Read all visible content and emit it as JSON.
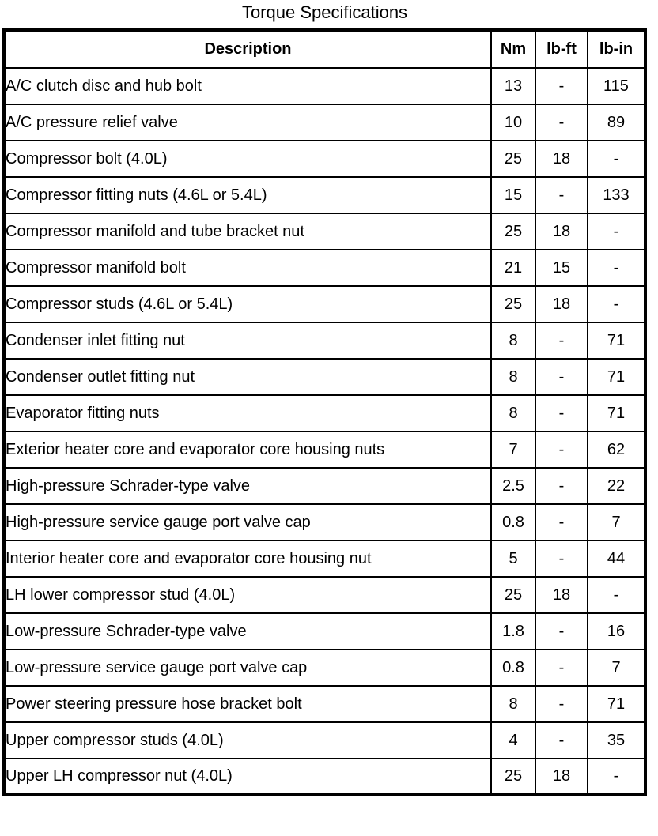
{
  "title": "Torque Specifications",
  "table": {
    "headers": {
      "description": "Description",
      "nm": "Nm",
      "lb_ft": "lb-ft",
      "lb_in": "lb-in"
    },
    "rows": [
      {
        "description": "A/C clutch disc and hub bolt",
        "nm": "13",
        "lb_ft": "-",
        "lb_in": "115"
      },
      {
        "description": "A/C pressure relief valve",
        "nm": "10",
        "lb_ft": "-",
        "lb_in": "89"
      },
      {
        "description": "Compressor bolt (4.0L)",
        "nm": "25",
        "lb_ft": "18",
        "lb_in": "-"
      },
      {
        "description": "Compressor fitting nuts (4.6L or 5.4L)",
        "nm": "15",
        "lb_ft": "-",
        "lb_in": "133"
      },
      {
        "description": "Compressor manifold and tube bracket nut",
        "nm": "25",
        "lb_ft": "18",
        "lb_in": "-"
      },
      {
        "description": "Compressor manifold bolt",
        "nm": "21",
        "lb_ft": "15",
        "lb_in": "-"
      },
      {
        "description": "Compressor studs (4.6L or 5.4L)",
        "nm": "25",
        "lb_ft": "18",
        "lb_in": "-"
      },
      {
        "description": "Condenser inlet fitting nut",
        "nm": "8",
        "lb_ft": "-",
        "lb_in": "71"
      },
      {
        "description": "Condenser outlet fitting nut",
        "nm": "8",
        "lb_ft": "-",
        "lb_in": "71"
      },
      {
        "description": "Evaporator fitting nuts",
        "nm": "8",
        "lb_ft": "-",
        "lb_in": "71"
      },
      {
        "description": "Exterior heater core and evaporator core housing nuts",
        "nm": "7",
        "lb_ft": "-",
        "lb_in": "62"
      },
      {
        "description": "High-pressure Schrader-type valve",
        "nm": "2.5",
        "lb_ft": "-",
        "lb_in": "22"
      },
      {
        "description": "High-pressure service gauge port valve cap",
        "nm": "0.8",
        "lb_ft": "-",
        "lb_in": "7"
      },
      {
        "description": "Interior heater core and evaporator core housing nut",
        "nm": "5",
        "lb_ft": "-",
        "lb_in": "44"
      },
      {
        "description": "LH lower compressor stud (4.0L)",
        "nm": "25",
        "lb_ft": "18",
        "lb_in": "-"
      },
      {
        "description": "Low-pressure Schrader-type valve",
        "nm": "1.8",
        "lb_ft": "-",
        "lb_in": "16"
      },
      {
        "description": "Low-pressure service gauge port valve cap",
        "nm": "0.8",
        "lb_ft": "-",
        "lb_in": "7"
      },
      {
        "description": "Power steering pressure hose bracket bolt",
        "nm": "8",
        "lb_ft": "-",
        "lb_in": "71"
      },
      {
        "description": "Upper compressor studs (4.0L)",
        "nm": "4",
        "lb_ft": "-",
        "lb_in": "35"
      },
      {
        "description": "Upper LH compressor nut (4.0L)",
        "nm": "25",
        "lb_ft": "18",
        "lb_in": "-"
      }
    ]
  },
  "colors": {
    "text": "#000000",
    "background": "#ffffff",
    "border": "#000000"
  }
}
